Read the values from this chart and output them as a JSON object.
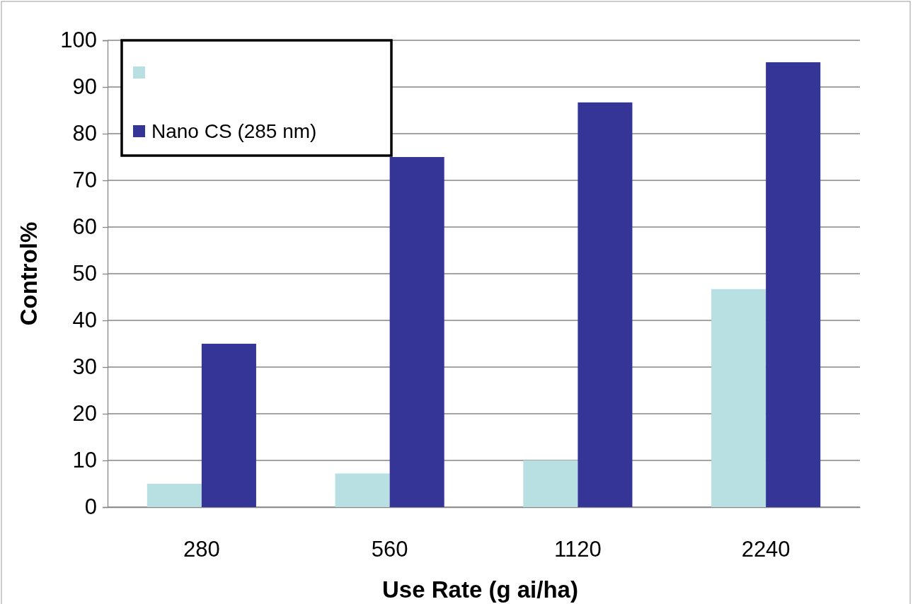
{
  "chart_data": {
    "type": "bar",
    "xlabel": "Use Rate (g ai/ha)",
    "ylabel": "Control%",
    "categories": [
      "280",
      "560",
      "1120",
      "2240"
    ],
    "series": [
      {
        "color": "#b8dfe1",
        "values": [
          5,
          7.2,
          10,
          46.7
        ]
      },
      {
        "name": "Nano CS (285 nm)",
        "color": "#353598",
        "values": [
          35,
          75,
          86.7,
          95.3
        ]
      }
    ],
    "ylim": [
      0,
      100
    ],
    "yticks": [
      0,
      10,
      20,
      30,
      40,
      50,
      60,
      70,
      80,
      90,
      100
    ],
    "grid": "y",
    "legend": "top left"
  }
}
